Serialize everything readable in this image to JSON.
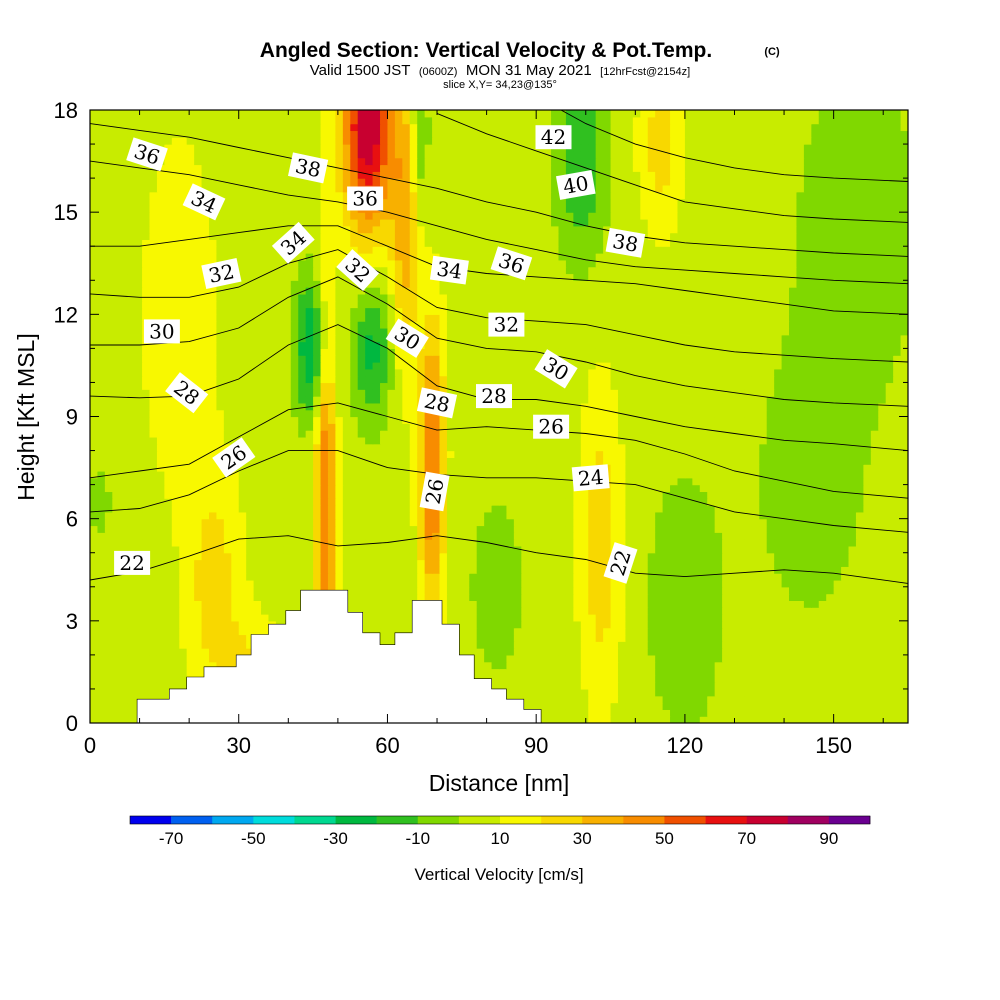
{
  "title": {
    "main": "Angled Section: Vertical Velocity & Pot.Temp.",
    "copyright": "(C)",
    "valid_a": "Valid 1500 JST",
    "valid_z": "(0600Z)",
    "valid_b": "MON 31 May 2021",
    "valid_fcst": "[12hrFcst@2154z]",
    "slice": "slice X,Y= 34,23@135°"
  },
  "colors": {
    "terrain": "#ffffff",
    "contour": "#000000",
    "label_bg": "#ffffff",
    "scale": [
      "#0000ee",
      "#0060f0",
      "#00a8f0",
      "#00dcdc",
      "#00d890",
      "#00b840",
      "#30c020",
      "#80d800",
      "#c8ec00",
      "#f8f800",
      "#f8d800",
      "#f8b000",
      "#f88c00",
      "#f05000",
      "#e81010",
      "#c80030",
      "#a00060",
      "#6a0090"
    ]
  },
  "chart_data": {
    "type": "heatmap",
    "title": "Angled Section: Vertical Velocity & Pot.Temp.",
    "subtitle": "Valid 1500 JST (0600Z) MON 31 May 2021 [12hrFcst@2154z]",
    "annotation": "slice X,Y= 34,23@135°",
    "xlabel": "Distance [nm]",
    "ylabel": "Height [Kft MSL]",
    "xlim": [
      0,
      165
    ],
    "ylim": [
      0,
      18
    ],
    "xticks": [
      0,
      30,
      60,
      90,
      120,
      150
    ],
    "yticks": [
      0,
      3,
      6,
      9,
      12,
      15,
      18
    ],
    "colorbar": {
      "label": "Vertical Velocity [cm/s]",
      "range": [
        -80,
        100
      ],
      "step": 10,
      "tick_labels": [
        -70,
        -50,
        -30,
        -10,
        10,
        30,
        50,
        70,
        90
      ]
    },
    "updrafts": [
      {
        "x": 18,
        "y": 12,
        "sx": 5,
        "sy": 3.5,
        "v": 15
      },
      {
        "x": 25,
        "y": 4,
        "sx": 4,
        "sy": 2.5,
        "v": 20
      },
      {
        "x": 47.5,
        "y": 7,
        "sx": 1.5,
        "sy": 4.5,
        "v": 45
      },
      {
        "x": 56,
        "y": 17.5,
        "sx": 3.5,
        "sy": 2.2,
        "v": 75
      },
      {
        "x": 63.5,
        "y": 14.8,
        "sx": 2,
        "sy": 3.2,
        "v": 30
      },
      {
        "x": 69,
        "y": 7.5,
        "sx": 1.8,
        "sy": 3,
        "v": 48
      },
      {
        "x": 103,
        "y": 5.2,
        "sx": 3,
        "sy": 3.2,
        "v": 22
      },
      {
        "x": 115,
        "y": 17,
        "sx": 3,
        "sy": 1.8,
        "v": 20
      },
      {
        "x": 33,
        "y": 1.5,
        "sx": 4,
        "sy": 1.2,
        "v": 15
      }
    ],
    "downdrafts": [
      {
        "x": 45,
        "y": 11,
        "sx": 2.5,
        "sy": 1.5,
        "v": -38
      },
      {
        "x": 57,
        "y": 11,
        "sx": 2.8,
        "sy": 1.5,
        "v": -28
      },
      {
        "x": 66.5,
        "y": 17.2,
        "sx": 1.2,
        "sy": 1.5,
        "v": -20
      },
      {
        "x": 99,
        "y": 16.5,
        "sx": 3.5,
        "sy": 2,
        "v": -25
      },
      {
        "x": 120,
        "y": 3.5,
        "sx": 5,
        "sy": 2.5,
        "v": -15
      },
      {
        "x": 155,
        "y": 14.5,
        "sx": 9,
        "sy": 3.5,
        "v": -12
      },
      {
        "x": 145,
        "y": 7,
        "sx": 8,
        "sy": 3,
        "v": -10
      },
      {
        "x": 82,
        "y": 4,
        "sx": 5,
        "sy": 2.5,
        "v": -8
      },
      {
        "x": 2,
        "y": 6.5,
        "sx": 2,
        "sy": 1,
        "v": -8
      }
    ],
    "terrain": [
      {
        "x": 0,
        "h": 0
      },
      {
        "x": 9.5,
        "h": 0
      },
      {
        "x": 9.5,
        "h": 0.7
      },
      {
        "x": 16,
        "h": 0.7
      },
      {
        "x": 16,
        "h": 1.0
      },
      {
        "x": 19.5,
        "h": 1.0
      },
      {
        "x": 19.5,
        "h": 1.35
      },
      {
        "x": 23,
        "h": 1.35
      },
      {
        "x": 23,
        "h": 1.65
      },
      {
        "x": 29.5,
        "h": 1.65
      },
      {
        "x": 29.5,
        "h": 2.0
      },
      {
        "x": 32.5,
        "h": 2.0
      },
      {
        "x": 32.5,
        "h": 2.6
      },
      {
        "x": 36,
        "h": 2.6
      },
      {
        "x": 36,
        "h": 2.9
      },
      {
        "x": 39.5,
        "h": 2.9
      },
      {
        "x": 39.5,
        "h": 3.3
      },
      {
        "x": 42.5,
        "h": 3.3
      },
      {
        "x": 42.5,
        "h": 3.9
      },
      {
        "x": 52,
        "h": 3.9
      },
      {
        "x": 52,
        "h": 3.25
      },
      {
        "x": 55,
        "h": 3.25
      },
      {
        "x": 55,
        "h": 2.65
      },
      {
        "x": 58.5,
        "h": 2.65
      },
      {
        "x": 58.5,
        "h": 2.3
      },
      {
        "x": 61.5,
        "h": 2.3
      },
      {
        "x": 61.5,
        "h": 2.65
      },
      {
        "x": 65,
        "h": 2.65
      },
      {
        "x": 65,
        "h": 3.6
      },
      {
        "x": 71,
        "h": 3.6
      },
      {
        "x": 71,
        "h": 2.9
      },
      {
        "x": 74.5,
        "h": 2.9
      },
      {
        "x": 74.5,
        "h": 2.0
      },
      {
        "x": 77.5,
        "h": 2.0
      },
      {
        "x": 77.5,
        "h": 1.3
      },
      {
        "x": 81,
        "h": 1.3
      },
      {
        "x": 81,
        "h": 1.0
      },
      {
        "x": 84,
        "h": 1.0
      },
      {
        "x": 84,
        "h": 0.7
      },
      {
        "x": 87.5,
        "h": 0.7
      },
      {
        "x": 87.5,
        "h": 0.4
      },
      {
        "x": 91,
        "h": 0.4
      },
      {
        "x": 91,
        "h": 0
      },
      {
        "x": 165,
        "h": 0
      }
    ],
    "theta_contours": [
      {
        "level": 22,
        "points": [
          [
            0,
            4.2
          ],
          [
            10,
            4.45
          ],
          [
            20,
            4.9
          ],
          [
            30,
            5.4
          ],
          [
            40,
            5.5
          ],
          [
            50,
            5.2
          ],
          [
            60,
            5.3
          ],
          [
            70,
            5.5
          ],
          [
            80,
            5.3
          ],
          [
            90,
            5.0
          ],
          [
            100,
            4.8
          ],
          [
            110,
            4.4
          ],
          [
            120,
            4.3
          ],
          [
            130,
            4.4
          ],
          [
            140,
            4.5
          ],
          [
            150,
            4.4
          ],
          [
            165,
            4.1
          ]
        ]
      },
      {
        "level": 24,
        "points": [
          [
            0,
            6.2
          ],
          [
            10,
            6.3
          ],
          [
            20,
            6.7
          ],
          [
            30,
            7.4
          ],
          [
            40,
            8.0
          ],
          [
            50,
            8.0
          ],
          [
            60,
            7.5
          ],
          [
            70,
            7.3
          ],
          [
            80,
            7.2
          ],
          [
            90,
            7.2
          ],
          [
            100,
            7.1
          ],
          [
            110,
            7.0
          ],
          [
            120,
            6.6
          ],
          [
            130,
            6.2
          ],
          [
            140,
            6.0
          ],
          [
            150,
            5.8
          ],
          [
            165,
            5.6
          ]
        ]
      },
      {
        "level": 26,
        "points": [
          [
            0,
            7.2
          ],
          [
            10,
            7.4
          ],
          [
            20,
            7.6
          ],
          [
            30,
            8.4
          ],
          [
            40,
            9.2
          ],
          [
            50,
            9.4
          ],
          [
            60,
            9.0
          ],
          [
            70,
            8.6
          ],
          [
            80,
            8.7
          ],
          [
            90,
            8.6
          ],
          [
            100,
            8.5
          ],
          [
            110,
            8.3
          ],
          [
            120,
            7.9
          ],
          [
            130,
            7.4
          ],
          [
            140,
            7.1
          ],
          [
            150,
            6.8
          ],
          [
            165,
            6.6
          ]
        ]
      },
      {
        "level": 28,
        "points": [
          [
            0,
            9.6
          ],
          [
            10,
            9.55
          ],
          [
            20,
            9.6
          ],
          [
            30,
            10.1
          ],
          [
            40,
            11.1
          ],
          [
            50,
            11.7
          ],
          [
            60,
            11.0
          ],
          [
            70,
            9.9
          ],
          [
            80,
            9.5
          ],
          [
            90,
            9.5
          ],
          [
            100,
            9.3
          ],
          [
            110,
            9.0
          ],
          [
            120,
            8.7
          ],
          [
            130,
            8.5
          ],
          [
            140,
            8.3
          ],
          [
            150,
            8.2
          ],
          [
            165,
            8.0
          ]
        ]
      },
      {
        "level": 30,
        "points": [
          [
            0,
            11.1
          ],
          [
            10,
            11.1
          ],
          [
            20,
            11.2
          ],
          [
            30,
            11.6
          ],
          [
            40,
            12.5
          ],
          [
            50,
            13.1
          ],
          [
            60,
            12.3
          ],
          [
            70,
            11.3
          ],
          [
            80,
            11.0
          ],
          [
            90,
            10.9
          ],
          [
            100,
            10.6
          ],
          [
            110,
            10.2
          ],
          [
            120,
            9.9
          ],
          [
            130,
            9.7
          ],
          [
            140,
            9.5
          ],
          [
            150,
            9.4
          ],
          [
            165,
            9.3
          ]
        ]
      },
      {
        "level": 32,
        "points": [
          [
            0,
            12.6
          ],
          [
            10,
            12.5
          ],
          [
            20,
            12.5
          ],
          [
            30,
            12.8
          ],
          [
            40,
            13.5
          ],
          [
            50,
            13.9
          ],
          [
            60,
            13.1
          ],
          [
            70,
            12.2
          ],
          [
            80,
            11.9
          ],
          [
            90,
            11.8
          ],
          [
            100,
            11.7
          ],
          [
            110,
            11.4
          ],
          [
            120,
            11.1
          ],
          [
            130,
            10.9
          ],
          [
            140,
            10.8
          ],
          [
            150,
            10.7
          ],
          [
            165,
            10.6
          ]
        ]
      },
      {
        "level": 34,
        "points": [
          [
            0,
            14.0
          ],
          [
            10,
            14.0
          ],
          [
            20,
            14.2
          ],
          [
            30,
            14.4
          ],
          [
            40,
            14.6
          ],
          [
            50,
            14.6
          ],
          [
            60,
            14.0
          ],
          [
            70,
            13.4
          ],
          [
            80,
            13.2
          ],
          [
            90,
            13.1
          ],
          [
            100,
            13.0
          ],
          [
            110,
            12.9
          ],
          [
            120,
            12.7
          ],
          [
            130,
            12.5
          ],
          [
            140,
            12.3
          ],
          [
            150,
            12.1
          ],
          [
            165,
            12.0
          ]
        ]
      },
      {
        "level": 36,
        "points": [
          [
            0,
            16.5
          ],
          [
            10,
            16.3
          ],
          [
            20,
            16.1
          ],
          [
            30,
            15.8
          ],
          [
            40,
            15.5
          ],
          [
            50,
            15.3
          ],
          [
            60,
            15.0
          ],
          [
            70,
            14.6
          ],
          [
            80,
            14.2
          ],
          [
            90,
            13.9
          ],
          [
            100,
            13.6
          ],
          [
            110,
            13.4
          ],
          [
            120,
            13.3
          ],
          [
            130,
            13.2
          ],
          [
            140,
            13.1
          ],
          [
            150,
            13.0
          ],
          [
            165,
            12.9
          ]
        ]
      },
      {
        "level": 38,
        "points": [
          [
            0,
            17.6
          ],
          [
            10,
            17.4
          ],
          [
            20,
            17.2
          ],
          [
            30,
            16.9
          ],
          [
            40,
            16.6
          ],
          [
            50,
            16.3
          ],
          [
            60,
            16.0
          ],
          [
            70,
            15.7
          ],
          [
            80,
            15.3
          ],
          [
            90,
            15.0
          ],
          [
            100,
            14.6
          ],
          [
            110,
            14.3
          ],
          [
            120,
            14.1
          ],
          [
            130,
            14.0
          ],
          [
            140,
            13.9
          ],
          [
            150,
            13.8
          ],
          [
            165,
            13.7
          ]
        ]
      },
      {
        "level": 40,
        "points": [
          [
            70,
            17.9
          ],
          [
            80,
            17.3
          ],
          [
            90,
            16.8
          ],
          [
            100,
            16.3
          ],
          [
            110,
            15.8
          ],
          [
            120,
            15.3
          ],
          [
            130,
            15.1
          ],
          [
            140,
            14.9
          ],
          [
            150,
            14.8
          ],
          [
            165,
            14.7
          ]
        ]
      },
      {
        "level": 42,
        "points": [
          [
            95,
            18.0
          ],
          [
            100,
            17.6
          ],
          [
            110,
            17.0
          ],
          [
            120,
            16.6
          ],
          [
            130,
            16.3
          ],
          [
            140,
            16.1
          ],
          [
            150,
            16.0
          ],
          [
            165,
            15.9
          ]
        ]
      }
    ],
    "contour_labels": [
      {
        "text": "36",
        "x": 11.5,
        "y": 16.7,
        "rot": 18
      },
      {
        "text": "34",
        "x": 23,
        "y": 15.3,
        "rot": 25
      },
      {
        "text": "32",
        "x": 26.5,
        "y": 13.2,
        "rot": -12
      },
      {
        "text": "30",
        "x": 14.5,
        "y": 11.5,
        "rot": 0
      },
      {
        "text": "28",
        "x": 19.5,
        "y": 9.7,
        "rot": 38
      },
      {
        "text": "26",
        "x": 29,
        "y": 7.8,
        "rot": -35
      },
      {
        "text": "22",
        "x": 8.5,
        "y": 4.7,
        "rot": 0
      },
      {
        "text": "38",
        "x": 44,
        "y": 16.3,
        "rot": 12
      },
      {
        "text": "34",
        "x": 41,
        "y": 14.1,
        "rot": -42
      },
      {
        "text": "36",
        "x": 55.5,
        "y": 15.4,
        "rot": 0
      },
      {
        "text": "32",
        "x": 54,
        "y": 13.3,
        "rot": 42
      },
      {
        "text": "30",
        "x": 64,
        "y": 11.3,
        "rot": 32
      },
      {
        "text": "26",
        "x": 69.5,
        "y": 6.8,
        "rot": -80
      },
      {
        "text": "28",
        "x": 70,
        "y": 9.4,
        "rot": 12
      },
      {
        "text": "34",
        "x": 72.5,
        "y": 13.3,
        "rot": 8
      },
      {
        "text": "28",
        "x": 81.5,
        "y": 9.6,
        "rot": 0
      },
      {
        "text": "36",
        "x": 85,
        "y": 13.5,
        "rot": 18
      },
      {
        "text": "32",
        "x": 84,
        "y": 11.7,
        "rot": 0
      },
      {
        "text": "42",
        "x": 93.5,
        "y": 17.2,
        "rot": 0
      },
      {
        "text": "40",
        "x": 98,
        "y": 15.8,
        "rot": -10
      },
      {
        "text": "30",
        "x": 94,
        "y": 10.4,
        "rot": 32
      },
      {
        "text": "26",
        "x": 93,
        "y": 8.7,
        "rot": 0
      },
      {
        "text": "24",
        "x": 101,
        "y": 7.2,
        "rot": -5
      },
      {
        "text": "38",
        "x": 108,
        "y": 14.1,
        "rot": 10
      },
      {
        "text": "22",
        "x": 107,
        "y": 4.7,
        "rot": -72
      }
    ]
  }
}
